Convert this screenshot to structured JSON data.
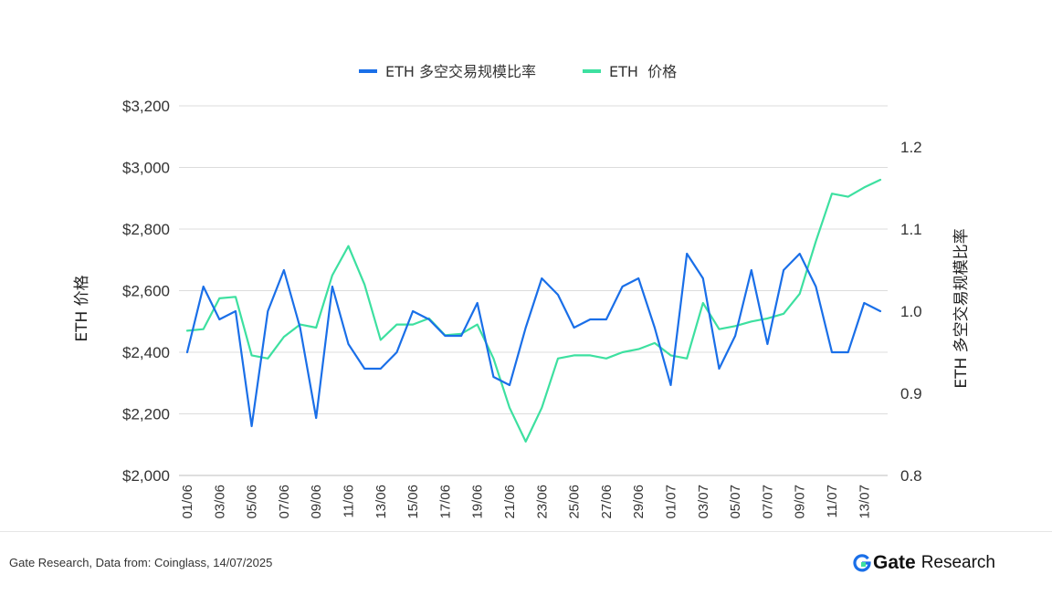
{
  "chart_data": {
    "type": "line",
    "legend": {
      "placement": "top-center"
    },
    "grid": true,
    "x": [
      "01/06",
      "02/06",
      "03/06",
      "04/06",
      "05/06",
      "06/06",
      "07/06",
      "08/06",
      "09/06",
      "10/06",
      "11/06",
      "12/06",
      "13/06",
      "14/06",
      "15/06",
      "16/06",
      "17/06",
      "18/06",
      "19/06",
      "20/06",
      "21/06",
      "22/06",
      "23/06",
      "24/06",
      "25/06",
      "26/06",
      "27/06",
      "28/06",
      "29/06",
      "30/06",
      "01/07",
      "02/07",
      "03/07",
      "04/07",
      "05/07",
      "06/07",
      "07/07",
      "08/07",
      "09/07",
      "10/07",
      "11/07",
      "12/07",
      "13/07",
      "14/07"
    ],
    "xticks": [
      "01/06",
      "03/06",
      "05/06",
      "07/06",
      "09/06",
      "11/06",
      "13/06",
      "15/06",
      "17/06",
      "19/06",
      "21/06",
      "23/06",
      "25/06",
      "27/06",
      "29/06",
      "01/07",
      "03/07",
      "05/07",
      "07/07",
      "09/07",
      "11/07",
      "13/07"
    ],
    "left_axis": {
      "label": "ETH 价格",
      "ylim": [
        2000,
        3200
      ],
      "ticks": [
        2000,
        2200,
        2400,
        2600,
        2800,
        3000,
        3200
      ],
      "tick_labels": [
        "$2,000",
        "$2,200",
        "$2,400",
        "$2,600",
        "$2,800",
        "$3,000",
        "$3,200"
      ]
    },
    "right_axis": {
      "label": "ETH 多空交易规模比率",
      "ylim": [
        0.8,
        1.25
      ],
      "ticks": [
        0.8,
        0.9,
        1.0,
        1.1,
        1.2
      ],
      "tick_labels": [
        "0.8",
        "0.9",
        "1.0",
        "1.1",
        "1.2"
      ]
    },
    "series": [
      {
        "name": "ETH 多空交易规模比率",
        "axis": "right",
        "color": "#1a6fe8",
        "values": [
          0.95,
          1.03,
          0.99,
          1.0,
          0.86,
          1.0,
          1.05,
          0.98,
          0.87,
          1.03,
          0.96,
          0.93,
          0.93,
          0.95,
          1.0,
          0.99,
          0.97,
          0.97,
          1.01,
          0.92,
          0.91,
          0.98,
          1.04,
          1.02,
          0.98,
          0.99,
          0.99,
          1.03,
          1.04,
          0.98,
          0.91,
          1.07,
          1.04,
          0.93,
          0.97,
          1.05,
          0.96,
          1.05,
          1.07,
          1.03,
          0.95,
          0.95,
          1.01,
          1.0
        ]
      },
      {
        "name": "ETH  价格",
        "axis": "left",
        "color": "#3de0a0",
        "values": [
          2470,
          2475,
          2575,
          2580,
          2390,
          2380,
          2450,
          2490,
          2480,
          2650,
          2745,
          2620,
          2440,
          2490,
          2490,
          2510,
          2455,
          2460,
          2490,
          2380,
          2220,
          2110,
          2220,
          2380,
          2390,
          2390,
          2380,
          2400,
          2410,
          2430,
          2390,
          2380,
          2560,
          2475,
          2485,
          2500,
          2510,
          2525,
          2590,
          2760,
          2915,
          2905,
          2935,
          2960
        ]
      }
    ]
  },
  "footer": {
    "source": "Gate Research, Data from: Coinglass, 14/07/2025",
    "brand_gate": "Gate",
    "brand_research": "Research"
  }
}
